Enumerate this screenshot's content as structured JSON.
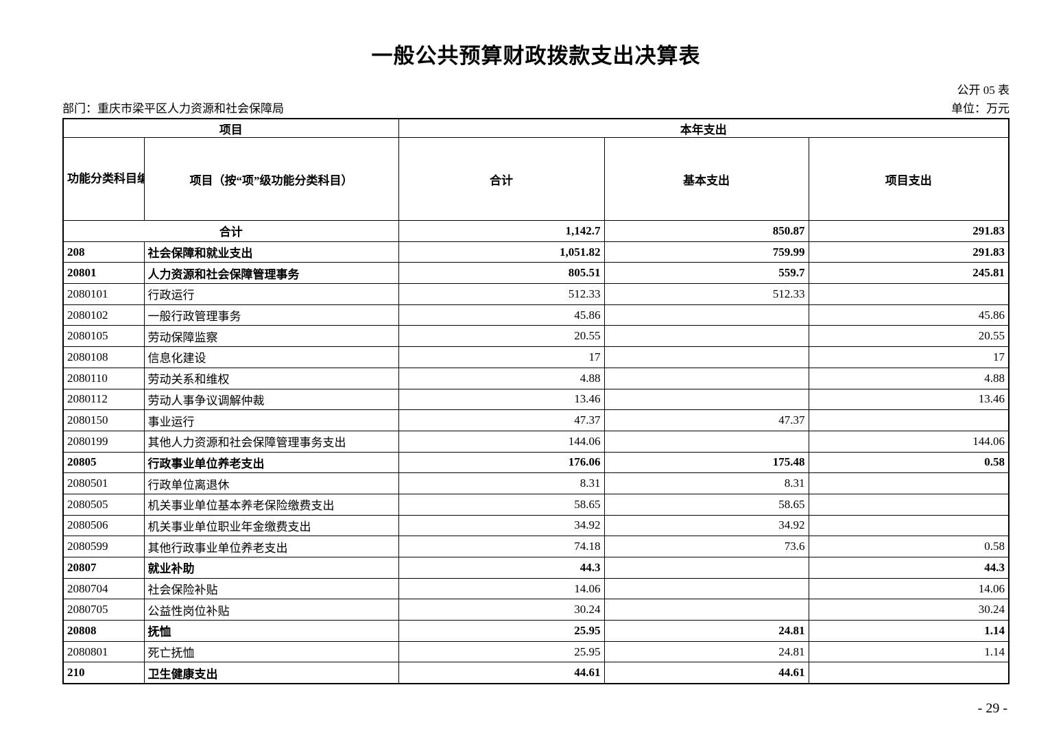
{
  "title": "一般公共预算财政拨款支出决算表",
  "meta": {
    "table_code": "公开 05 表",
    "department": "部门：重庆市梁平区人力资源和社会保障局",
    "unit": "单位：万元"
  },
  "table": {
    "header": {
      "group_left": "项目",
      "group_right": "本年支出",
      "col_code": "功能分类科目编码",
      "col_item": "项目（按“项”级功能分类科目）",
      "col_total": "合计",
      "col_basic": "基本支出",
      "col_project": "项目支出"
    },
    "rows": [
      {
        "code": "",
        "name": "合计",
        "total": "1,142.7",
        "basic": "850.87",
        "project": "291.83",
        "bold": true,
        "merged": true
      },
      {
        "code": "208",
        "name": "社会保障和就业支出",
        "total": "1,051.82",
        "basic": "759.99",
        "project": "291.83",
        "bold": true
      },
      {
        "code": "20801",
        "name": "人力资源和社会保障管理事务",
        "total": "805.51",
        "basic": "559.7",
        "project": "245.81",
        "bold": true
      },
      {
        "code": "2080101",
        "name": "行政运行",
        "total": "512.33",
        "basic": "512.33",
        "project": ""
      },
      {
        "code": "2080102",
        "name": "一般行政管理事务",
        "total": "45.86",
        "basic": "",
        "project": "45.86"
      },
      {
        "code": "2080105",
        "name": "劳动保障监察",
        "total": "20.55",
        "basic": "",
        "project": "20.55"
      },
      {
        "code": "2080108",
        "name": "信息化建设",
        "total": "17",
        "basic": "",
        "project": "17"
      },
      {
        "code": "2080110",
        "name": "劳动关系和维权",
        "total": "4.88",
        "basic": "",
        "project": "4.88"
      },
      {
        "code": "2080112",
        "name": "劳动人事争议调解仲裁",
        "total": "13.46",
        "basic": "",
        "project": "13.46"
      },
      {
        "code": "2080150",
        "name": "事业运行",
        "total": "47.37",
        "basic": "47.37",
        "project": ""
      },
      {
        "code": "2080199",
        "name": "其他人力资源和社会保障管理事务支出",
        "total": "144.06",
        "basic": "",
        "project": "144.06"
      },
      {
        "code": "20805",
        "name": "行政事业单位养老支出",
        "total": "176.06",
        "basic": "175.48",
        "project": "0.58",
        "bold": true
      },
      {
        "code": "2080501",
        "name": "行政单位离退休",
        "total": "8.31",
        "basic": "8.31",
        "project": ""
      },
      {
        "code": "2080505",
        "name": "机关事业单位基本养老保险缴费支出",
        "total": "58.65",
        "basic": "58.65",
        "project": ""
      },
      {
        "code": "2080506",
        "name": "机关事业单位职业年金缴费支出",
        "total": "34.92",
        "basic": "34.92",
        "project": ""
      },
      {
        "code": "2080599",
        "name": "其他行政事业单位养老支出",
        "total": "74.18",
        "basic": "73.6",
        "project": "0.58"
      },
      {
        "code": "20807",
        "name": "就业补助",
        "total": "44.3",
        "basic": "",
        "project": "44.3",
        "bold": true
      },
      {
        "code": "2080704",
        "name": "社会保险补贴",
        "total": "14.06",
        "basic": "",
        "project": "14.06"
      },
      {
        "code": "2080705",
        "name": "公益性岗位补贴",
        "total": "30.24",
        "basic": "",
        "project": "30.24"
      },
      {
        "code": "20808",
        "name": "抚恤",
        "total": "25.95",
        "basic": "24.81",
        "project": "1.14",
        "bold": true
      },
      {
        "code": "2080801",
        "name": "死亡抚恤",
        "total": "25.95",
        "basic": "24.81",
        "project": "1.14"
      },
      {
        "code": "210",
        "name": "卫生健康支出",
        "total": "44.61",
        "basic": "44.61",
        "project": "",
        "bold": true
      }
    ]
  },
  "page_number": "- 29 -"
}
